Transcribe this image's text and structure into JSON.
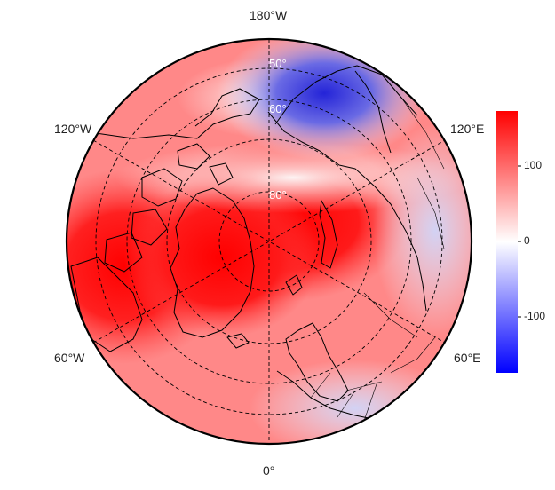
{
  "labels": {
    "top": "180°W",
    "bottom": "0°",
    "upper_left": "120°W",
    "upper_right": "120°E",
    "lower_left": "60°W",
    "lower_right": "60°E"
  },
  "latitude_labels": [
    "50°",
    "60°",
    "80°"
  ],
  "colorbar": {
    "ticks": [
      "100",
      "0",
      "-100"
    ],
    "min": -175,
    "max": 175,
    "colors": {
      "low": "#0000ff",
      "mid": "#ffffff",
      "high": "#ff0000"
    }
  },
  "map": {
    "projection": "north-polar-stereographic",
    "field_colors": {
      "high": "#ff0000",
      "low": "#1010e0",
      "neutral": "#ffffff"
    }
  }
}
